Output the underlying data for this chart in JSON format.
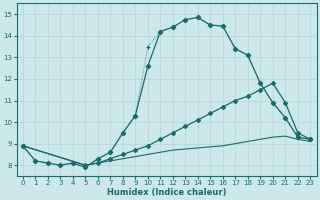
{
  "xlabel": "Humidex (Indice chaleur)",
  "xlim": [
    -0.5,
    23.5
  ],
  "ylim": [
    7.5,
    15.5
  ],
  "yticks": [
    8,
    9,
    10,
    11,
    12,
    13,
    14,
    15
  ],
  "xticks": [
    0,
    1,
    2,
    3,
    4,
    5,
    6,
    7,
    8,
    9,
    10,
    11,
    12,
    13,
    14,
    15,
    16,
    17,
    18,
    19,
    20,
    21,
    22,
    23
  ],
  "bg_color": "#cce8eb",
  "line_color": "#1a6b6b",
  "grid_color": "#b8d8dc",
  "line1_x": [
    0,
    1,
    2,
    3,
    4,
    5,
    6,
    7,
    8,
    9,
    10,
    11,
    12,
    13,
    14,
    15,
    16,
    17,
    18,
    19,
    20,
    21,
    22,
    23
  ],
  "line1_y": [
    8.9,
    8.2,
    8.1,
    8.0,
    8.1,
    7.9,
    8.3,
    8.6,
    9.5,
    10.3,
    13.5,
    14.2,
    14.4,
    14.75,
    14.85,
    14.5,
    14.45,
    13.4,
    13.1,
    11.8,
    10.9,
    10.2,
    9.3,
    9.2
  ],
  "line2_x": [
    0,
    1,
    2,
    3,
    4,
    5,
    6,
    7,
    8,
    9,
    10,
    11,
    12,
    13,
    14,
    15,
    16,
    17,
    18,
    19,
    20,
    21,
    22,
    23
  ],
  "line2_y": [
    8.9,
    8.2,
    8.1,
    8.0,
    8.1,
    7.9,
    8.3,
    8.6,
    9.5,
    10.3,
    12.6,
    14.2,
    14.4,
    14.75,
    14.85,
    14.5,
    14.45,
    13.4,
    13.1,
    11.8,
    10.9,
    10.2,
    9.3,
    9.2
  ],
  "line3_x": [
    0,
    5,
    6,
    7,
    8,
    9,
    10,
    11,
    12,
    13,
    14,
    15,
    16,
    17,
    18,
    19,
    20,
    21,
    22,
    23
  ],
  "line3_y": [
    8.9,
    8.0,
    8.1,
    8.3,
    8.5,
    8.7,
    8.9,
    9.2,
    9.5,
    9.8,
    10.1,
    10.4,
    10.7,
    11.0,
    11.2,
    11.5,
    11.8,
    10.9,
    9.5,
    9.2
  ],
  "line4_x": [
    0,
    5,
    6,
    7,
    8,
    9,
    10,
    11,
    12,
    13,
    14,
    15,
    16,
    17,
    18,
    19,
    20,
    21,
    22,
    23
  ],
  "line4_y": [
    8.9,
    8.0,
    8.1,
    8.2,
    8.3,
    8.4,
    8.5,
    8.6,
    8.7,
    8.75,
    8.8,
    8.85,
    8.9,
    9.0,
    9.1,
    9.2,
    9.3,
    9.35,
    9.2,
    9.1
  ]
}
